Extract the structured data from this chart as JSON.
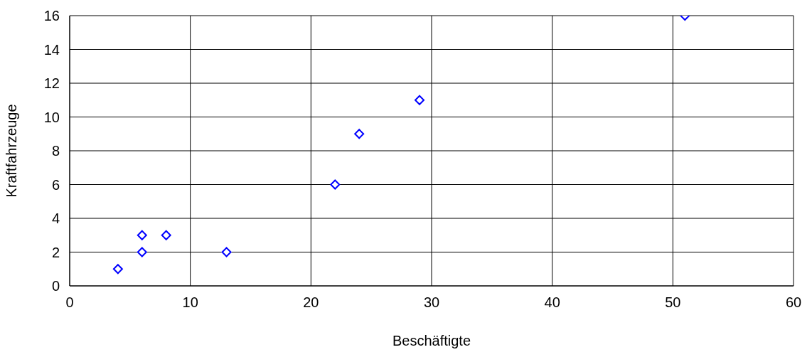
{
  "chart_data": {
    "type": "scatter",
    "xlabel": "Beschäftigte",
    "ylabel": "Kraftfahrzeuge",
    "x": [
      4,
      6,
      6,
      8,
      13,
      22,
      24,
      29,
      51
    ],
    "values": [
      1,
      2,
      3,
      3,
      2,
      6,
      9,
      11,
      16
    ],
    "color": "#0000ff",
    "marker": "diamond",
    "xlim": [
      0,
      60
    ],
    "xticks": [
      0,
      10,
      20,
      30,
      40,
      50,
      60
    ],
    "ylim": [
      0,
      16
    ],
    "yticks": [
      0,
      2,
      4,
      6,
      8,
      10,
      12,
      14,
      16
    ],
    "grid": true,
    "legend": false
  }
}
